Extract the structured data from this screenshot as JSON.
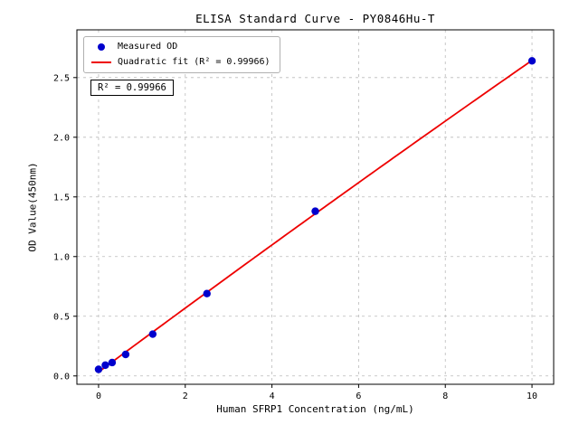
{
  "chart_data": {
    "type": "scatter",
    "title": "ELISA Standard Curve - PY0846Hu-T",
    "xlabel": "Human SFRP1 Concentration (ng/mL)",
    "ylabel": "OD Value(450nm)",
    "x": [
      0,
      0.156,
      0.3125,
      0.625,
      1.25,
      2.5,
      5,
      10
    ],
    "y": [
      0.055,
      0.09,
      0.112,
      0.18,
      0.35,
      0.69,
      1.38,
      2.64
    ],
    "series": [
      {
        "name": "Measured OD",
        "type": "scatter",
        "color": "#0000cd"
      },
      {
        "name": "Quadratic fit (R² = 0.99966)",
        "type": "line",
        "color": "#ee0000"
      }
    ],
    "fit": {
      "kind": "quadratic",
      "r_squared": 0.99966
    },
    "annotation": "R² = 0.99966",
    "xticks": [
      0,
      2,
      4,
      6,
      8,
      10
    ],
    "yticks": [
      0.0,
      0.5,
      1.0,
      1.5,
      2.0,
      2.5
    ],
    "xlim": [
      -0.5,
      10.5
    ],
    "ylim": [
      -0.07,
      2.9
    ],
    "grid": true,
    "grid_style": "dashed",
    "legend_position": "upper left",
    "colors": {
      "point": "#0000cd",
      "fit_line": "#ee0000",
      "grid": "#bbbbbb",
      "frame": "#000000",
      "background": "#ffffff"
    }
  }
}
